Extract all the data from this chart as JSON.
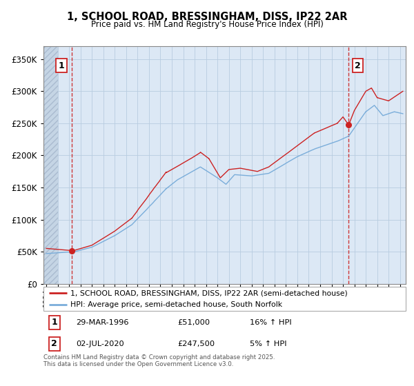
{
  "title": "1, SCHOOL ROAD, BRESSINGHAM, DISS, IP22 2AR",
  "subtitle": "Price paid vs. HM Land Registry's House Price Index (HPI)",
  "ytick_vals": [
    0,
    50000,
    100000,
    150000,
    200000,
    250000,
    300000,
    350000
  ],
  "ylim": [
    0,
    370000
  ],
  "xlim_start": 1993.75,
  "xlim_end": 2025.5,
  "legend_line1": "1, SCHOOL ROAD, BRESSINGHAM, DISS, IP22 2AR (semi-detached house)",
  "legend_line2": "HPI: Average price, semi-detached house, South Norfolk",
  "marker1_x": 1996.23,
  "marker1_y": 51000,
  "marker2_x": 2020.5,
  "marker2_y": 247500,
  "footnote": "Contains HM Land Registry data © Crown copyright and database right 2025.\nThis data is licensed under the Open Government Licence v3.0.",
  "line_color_price": "#cc2222",
  "line_color_hpi": "#7aadda",
  "bg_color_main": "#dce8f5",
  "bg_color_hatch": "#c8d8e8",
  "vline_color": "#cc2222",
  "grid_color": "#b8cce0",
  "box_color": "#cc2222",
  "hatch_end": 1995.0
}
